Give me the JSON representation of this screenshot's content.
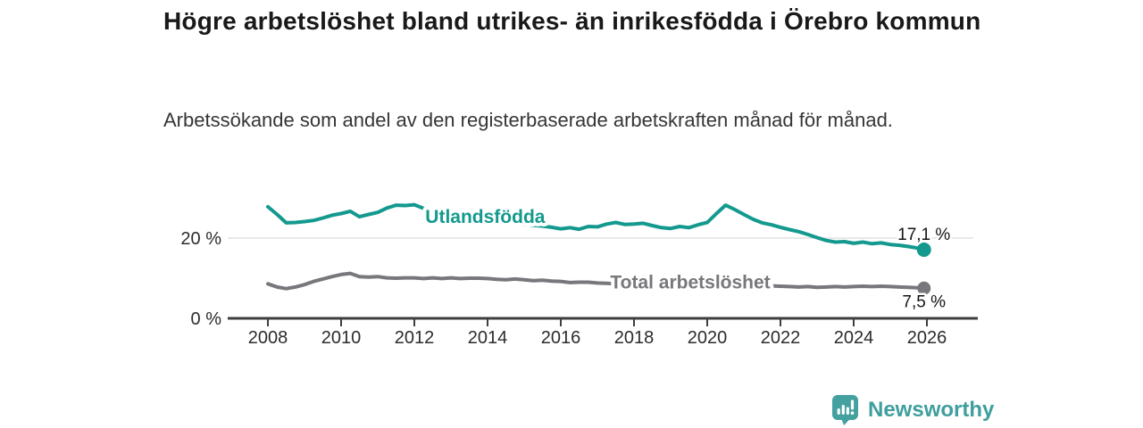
{
  "chart_data": {
    "type": "line",
    "title": "Högre arbetslöshet bland utrikes- än inrikesfödda i Örebro kommun",
    "subtitle": "Arbetssökande som andel av den registerbaserade arbetskraften månad för månad.",
    "xlabel": "",
    "ylabel": "",
    "ylim": [
      0,
      30
    ],
    "grid_values": [
      20
    ],
    "legend": "inline-labels-on-lines",
    "y_ticks": [
      {
        "value": 0,
        "label": "0 %"
      },
      {
        "value": 20,
        "label": "20 %"
      }
    ],
    "x_ticks": [
      {
        "value": 2008,
        "label": "2008"
      },
      {
        "value": 2010,
        "label": "2010"
      },
      {
        "value": 2012,
        "label": "2012"
      },
      {
        "value": 2014,
        "label": "2014"
      },
      {
        "value": 2016,
        "label": "2016"
      },
      {
        "value": 2018,
        "label": "2018"
      },
      {
        "value": 2020,
        "label": "2020"
      },
      {
        "value": 2022,
        "label": "2022"
      },
      {
        "value": 2024,
        "label": "2024"
      },
      {
        "value": 2026,
        "label": "2026"
      }
    ],
    "x": [
      2008,
      2008.25,
      2008.5,
      2008.75,
      2009,
      2009.25,
      2009.5,
      2009.75,
      2010,
      2010.25,
      2010.5,
      2010.75,
      2011,
      2011.25,
      2011.5,
      2011.75,
      2012,
      2012.25,
      2012.5,
      2012.75,
      2013,
      2013.25,
      2013.5,
      2013.75,
      2014,
      2014.25,
      2014.5,
      2014.75,
      2015,
      2015.25,
      2015.5,
      2015.75,
      2016,
      2016.25,
      2016.5,
      2016.75,
      2017,
      2017.25,
      2017.5,
      2017.75,
      2018,
      2018.25,
      2018.5,
      2018.75,
      2019,
      2019.25,
      2019.5,
      2019.75,
      2020,
      2020.25,
      2020.5,
      2020.75,
      2021,
      2021.25,
      2021.5,
      2021.75,
      2022,
      2022.25,
      2022.5,
      2022.75,
      2023,
      2023.25,
      2023.5,
      2023.75,
      2024,
      2024.25,
      2024.5,
      2024.75,
      2025,
      2025.25,
      2025.5,
      2025.75,
      2025.92
    ],
    "series": [
      {
        "name": "Utlandsfödda",
        "color": "#13998e",
        "values": [
          27.8,
          25.9,
          23.8,
          23.9,
          24.1,
          24.4,
          25.0,
          25.7,
          26.1,
          26.7,
          25.3,
          25.9,
          26.4,
          27.5,
          28.2,
          28.1,
          28.3,
          27.4,
          26.7,
          26.2,
          25.8,
          25.6,
          25.3,
          25.0,
          24.8,
          24.5,
          24.1,
          23.8,
          23.5,
          23.2,
          23.0,
          22.7,
          22.3,
          22.6,
          22.2,
          22.9,
          22.8,
          23.5,
          23.9,
          23.4,
          23.5,
          23.7,
          23.1,
          22.6,
          22.4,
          22.9,
          22.6,
          23.3,
          23.9,
          26.1,
          28.2,
          27.1,
          25.9,
          24.7,
          23.8,
          23.3,
          22.7,
          22.1,
          21.6,
          20.9,
          20.1,
          19.4,
          19.0,
          19.1,
          18.7,
          19.0,
          18.6,
          18.8,
          18.4,
          18.2,
          17.9,
          17.5,
          17.1
        ],
        "label_pos": {
          "x": 2012.3,
          "y": 23.8
        },
        "end_label": "17,1 %",
        "end_label_side": "above"
      },
      {
        "name": "Total arbetslöshet",
        "color": "#77777c",
        "values": [
          8.6,
          7.8,
          7.4,
          7.8,
          8.4,
          9.2,
          9.8,
          10.4,
          10.9,
          11.2,
          10.4,
          10.3,
          10.4,
          10.1,
          10.0,
          10.1,
          10.1,
          9.9,
          10.1,
          9.9,
          10.1,
          9.9,
          10.0,
          10.0,
          9.9,
          9.7,
          9.6,
          9.8,
          9.6,
          9.4,
          9.5,
          9.3,
          9.2,
          8.9,
          9.0,
          9.0,
          8.8,
          8.7,
          8.6,
          8.4,
          8.3,
          8.2,
          8.2,
          8.1,
          8.1,
          8.0,
          8.0,
          8.1,
          8.3,
          8.9,
          9.0,
          8.8,
          8.6,
          8.4,
          8.2,
          8.1,
          8.0,
          7.9,
          7.8,
          7.9,
          7.7,
          7.8,
          7.9,
          7.8,
          7.9,
          8.0,
          7.9,
          8.0,
          7.9,
          7.8,
          7.7,
          7.6,
          7.5
        ],
        "label_pos": {
          "x": 2017.35,
          "y": 7.5
        },
        "end_label": "7,5 %",
        "end_label_side": "below"
      }
    ],
    "colors": {
      "grid": "#d9d9d9",
      "axis": "#3e3e3e",
      "tick_label": "#2c2c2c",
      "end_label_text": "#141414"
    }
  },
  "footer": {
    "brand": "Newsworthy",
    "brand_color": "#45a1a0"
  }
}
